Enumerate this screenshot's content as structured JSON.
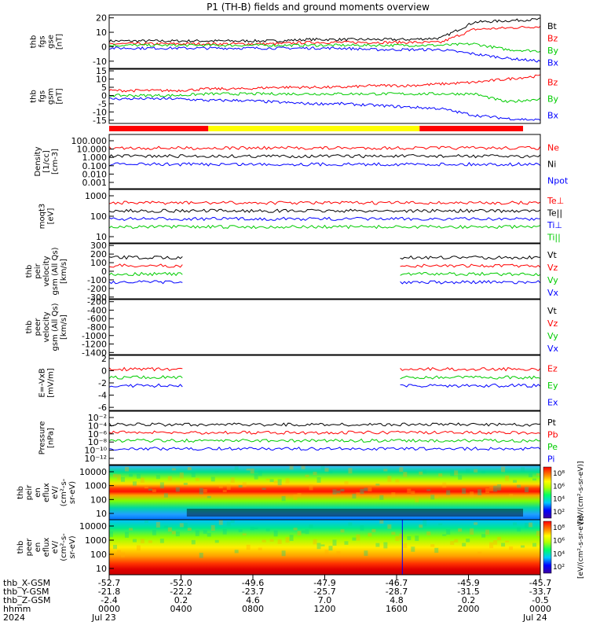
{
  "title": "P1 (TH-B) fields and ground moments overview",
  "chart_data": [
    {
      "type": "line",
      "panel": "fgs_gse",
      "ylabel": [
        "thb",
        "fgs",
        "gse",
        "[nT]"
      ],
      "ylim": [
        -15,
        22
      ],
      "yticks": [
        20,
        10,
        0,
        -10
      ],
      "legend": [
        {
          "name": "Bt",
          "color": "#000000"
        },
        {
          "name": "Bz",
          "color": "#ff0000"
        },
        {
          "name": "By",
          "color": "#00cc00"
        },
        {
          "name": "Bx",
          "color": "#0000ff"
        }
      ],
      "series": [
        {
          "name": "Bt",
          "values": [
            4,
            4,
            4,
            4,
            4,
            4,
            5,
            5,
            5,
            5,
            6,
            17,
            18,
            19
          ]
        },
        {
          "name": "Bz",
          "values": [
            2,
            2,
            2,
            2,
            2,
            2,
            3,
            3,
            3,
            3,
            3,
            12,
            13,
            14
          ]
        },
        {
          "name": "By",
          "values": [
            1,
            1,
            1,
            1,
            1,
            1,
            1,
            1,
            1,
            1,
            1,
            2,
            -2,
            -3
          ]
        },
        {
          "name": "Bx",
          "values": [
            -1,
            -1,
            -1,
            -1,
            -1,
            -1,
            -1,
            -1,
            -2,
            -2,
            -2,
            -5,
            -8,
            -10
          ]
        }
      ]
    },
    {
      "type": "line",
      "panel": "fgs_gsm",
      "ylabel": [
        "thb",
        "fgs",
        "gsm",
        "[nT]"
      ],
      "ylim": [
        -17,
        16
      ],
      "yticks": [
        15,
        10,
        5,
        0,
        -5,
        -10,
        -15
      ],
      "legend": [
        {
          "name": "Bz",
          "color": "#ff0000"
        },
        {
          "name": "By",
          "color": "#00cc00"
        },
        {
          "name": "Bx",
          "color": "#0000ff"
        }
      ],
      "series": [
        {
          "name": "Bz",
          "values": [
            3,
            3,
            3,
            4,
            4,
            5,
            5,
            5,
            6,
            6,
            7,
            8,
            10,
            12
          ]
        },
        {
          "name": "By",
          "values": [
            0,
            0,
            0,
            1,
            1,
            1,
            1,
            1,
            1,
            1,
            1,
            1,
            -4,
            -2
          ]
        },
        {
          "name": "Bx",
          "values": [
            -2,
            -2,
            -2,
            -3,
            -3,
            -4,
            -5,
            -5,
            -6,
            -7,
            -8,
            -12,
            -14,
            -15
          ]
        }
      ]
    },
    {
      "type": "line",
      "panel": "density",
      "ylabel": [
        "Density",
        "[1/cc]",
        "[cm-3]"
      ],
      "yscale": "log",
      "ylim": [
        0.0005,
        200
      ],
      "yticks": [
        "100.000",
        "10.000",
        "1.000",
        "0.100",
        "0.010",
        "0.001"
      ],
      "legend": [
        {
          "name": "Ne",
          "color": "#ff0000"
        },
        {
          "name": "Ni",
          "color": "#000000"
        },
        {
          "name": "Npot",
          "color": "#0000ff"
        }
      ]
    },
    {
      "type": "line",
      "panel": "temperature",
      "ylabel": [
        "moqt3",
        "[eV]"
      ],
      "yscale": "log",
      "ylim": [
        8,
        1500
      ],
      "yticks": [
        "1000",
        "100",
        "10"
      ],
      "legend": [
        {
          "name": "Te⊥",
          "color": "#ff0000"
        },
        {
          "name": "Te||",
          "color": "#000000"
        },
        {
          "name": "Ti⊥",
          "color": "#0000ff"
        },
        {
          "name": "Ti||",
          "color": "#00cc00"
        }
      ]
    },
    {
      "type": "line",
      "panel": "peir_velocity",
      "ylabel": [
        "thb",
        "peir",
        "velocity",
        "gsm (All Qs)",
        "[km/s]"
      ],
      "ylim": [
        -320,
        320
      ],
      "yticks": [
        300,
        200,
        100,
        0,
        -100,
        -200,
        -300
      ],
      "legend": [
        {
          "name": "Vt",
          "color": "#000000"
        },
        {
          "name": "Vz",
          "color": "#ff0000"
        },
        {
          "name": "Vy",
          "color": "#00cc00"
        },
        {
          "name": "Vx",
          "color": "#0000ff"
        }
      ]
    },
    {
      "type": "line",
      "panel": "peer_velocity",
      "ylabel": [
        "thb",
        "peer",
        "velocity",
        "gsm (All Qs)",
        "[km/s]"
      ],
      "ylim": [
        -1450,
        -150
      ],
      "yticks": [
        -200,
        -400,
        -600,
        -800,
        -1000,
        -1200,
        -1400
      ],
      "legend": [
        {
          "name": "Vt",
          "color": "#000000"
        },
        {
          "name": "Vz",
          "color": "#ff0000"
        },
        {
          "name": "Vy",
          "color": "#00cc00"
        },
        {
          "name": "Vx",
          "color": "#0000ff"
        }
      ]
    },
    {
      "type": "line",
      "panel": "efield",
      "ylabel": [
        "E=-VxB",
        "[mV/m]"
      ],
      "ylim": [
        -6.5,
        2.5
      ],
      "yticks": [
        2,
        0,
        -2,
        -4,
        -6
      ],
      "legend": [
        {
          "name": "Ez",
          "color": "#ff0000"
        },
        {
          "name": "Ey",
          "color": "#00cc00"
        },
        {
          "name": "Ex",
          "color": "#0000ff"
        }
      ]
    },
    {
      "type": "line",
      "panel": "pressure",
      "ylabel": [
        "Pressure",
        "[nPa]"
      ],
      "yscale": "log",
      "ylim": [
        1e-12,
        1
      ],
      "yticks": [
        "10⁻²",
        "10⁻⁴",
        "10⁻⁶",
        "10⁻⁸",
        "10⁻¹⁰",
        "10⁻¹²"
      ],
      "legend": [
        {
          "name": "Pt",
          "color": "#000000"
        },
        {
          "name": "Pb",
          "color": "#ff0000"
        },
        {
          "name": "Pe",
          "color": "#00cc00"
        },
        {
          "name": "Pi",
          "color": "#0000ff"
        }
      ]
    },
    {
      "type": "heatmap",
      "panel": "peir_spectrogram",
      "ylabel": [
        "thb",
        "peir",
        "en",
        "eflux",
        "eV/",
        "(cm²-s-",
        "sr-eV)"
      ],
      "yscale": "log",
      "yticks": [
        "10000",
        "1000",
        "100",
        "10"
      ],
      "colorbar_label": "[eV/(cm²-s-sr-eV)]",
      "colorbar_ticks": [
        "10⁸",
        "10⁶",
        "10⁴",
        "10²"
      ]
    },
    {
      "type": "heatmap",
      "panel": "peer_spectrogram",
      "ylabel": [
        "thb",
        "peer",
        "en",
        "eflux",
        "eV/",
        "(cm²-s-",
        "sr-eV)"
      ],
      "yscale": "log",
      "yticks": [
        "10000",
        "1000",
        "100",
        "10"
      ],
      "colorbar_label": "[eV/(cm²-s-sr-eV)]",
      "colorbar_ticks": [
        "10⁸",
        "10⁶",
        "10⁴",
        "10²"
      ]
    }
  ],
  "mode_bar": [
    {
      "from": 0,
      "to": 0.23,
      "color": "#ff0000"
    },
    {
      "from": 0.23,
      "to": 0.72,
      "color": "#ffff00"
    },
    {
      "from": 0.72,
      "to": 0.96,
      "color": "#ff0000"
    }
  ],
  "x_axis": {
    "row_labels": [
      "thb_X-GSM",
      "thb_Y-GSM",
      "thb_Z-GSM",
      "hhmm",
      "2024"
    ],
    "columns": [
      {
        "X": "-52.7",
        "Y": "-21.8",
        "Z": "-2.4",
        "hhmm": "0000",
        "date": "Jul 23"
      },
      {
        "X": "-52.0",
        "Y": "-22.2",
        "Z": "0.2",
        "hhmm": "0400",
        "date": ""
      },
      {
        "X": "-49.6",
        "Y": "-23.7",
        "Z": "4.6",
        "hhmm": "0800",
        "date": ""
      },
      {
        "X": "-47.9",
        "Y": "-25.7",
        "Z": "7.0",
        "hhmm": "1200",
        "date": ""
      },
      {
        "X": "-46.7",
        "Y": "-28.7",
        "Z": "4.8",
        "hhmm": "1600",
        "date": ""
      },
      {
        "X": "-45.9",
        "Y": "-31.5",
        "Z": "0.2",
        "hhmm": "2000",
        "date": ""
      },
      {
        "X": "-45.7",
        "Y": "-33.7",
        "Z": "-0.5",
        "hhmm": "0000",
        "date": "Jul 24"
      }
    ]
  }
}
